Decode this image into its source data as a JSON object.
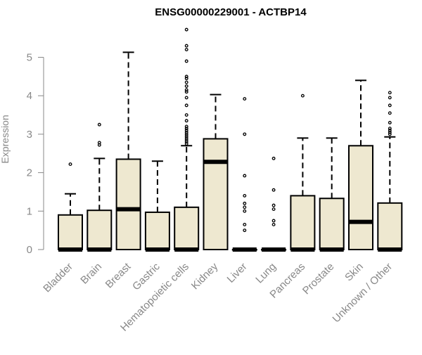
{
  "chart_data": {
    "type": "boxplot",
    "title": "ENSG00000229001 - ACTBP14",
    "ylabel": "Expression",
    "xlabel": "",
    "ylim": [
      0,
      5.75
    ],
    "yticks": [
      0,
      1,
      2,
      3,
      4,
      5
    ],
    "grid": false,
    "colors": {
      "box_fill": "#EEE8D0",
      "stroke": "#000000",
      "axis": "#888888"
    },
    "categories": [
      "Bladder",
      "Brain",
      "Breast",
      "Gastric",
      "Hematopoietic cells",
      "Kidney",
      "Liver",
      "Lung",
      "Pancreas",
      "Prostate",
      "Skin",
      "Unknown / Other"
    ],
    "boxes": [
      {
        "q1": 0,
        "median": 0,
        "q3": 0.9,
        "whisker_low": 0,
        "whisker_high": 1.45,
        "outliers": [
          2.22
        ]
      },
      {
        "q1": 0,
        "median": 0,
        "q3": 1.02,
        "whisker_low": 0,
        "whisker_high": 2.37,
        "outliers": [
          2.72,
          2.78,
          3.25
        ]
      },
      {
        "q1": 0,
        "median": 1.05,
        "q3": 2.35,
        "whisker_low": 0,
        "whisker_high": 5.13,
        "outliers": []
      },
      {
        "q1": 0,
        "median": 0,
        "q3": 0.97,
        "whisker_low": 0,
        "whisker_high": 2.3,
        "outliers": []
      },
      {
        "q1": 0,
        "median": 0,
        "q3": 1.1,
        "whisker_low": 0,
        "whisker_high": 2.7,
        "outliers": [
          2.75,
          2.8,
          2.85,
          2.9,
          2.95,
          3.0,
          3.05,
          3.1,
          3.15,
          3.2,
          3.35,
          3.5,
          3.75,
          3.95,
          4.1,
          4.15,
          4.25,
          4.35,
          4.45,
          4.5,
          4.9,
          5.2,
          5.3,
          5.72
        ]
      },
      {
        "q1": 0,
        "median": 2.28,
        "q3": 2.88,
        "whisker_low": 0,
        "whisker_high": 4.03,
        "outliers": []
      },
      {
        "q1": 0,
        "median": 0,
        "q3": 0,
        "whisker_low": 0,
        "whisker_high": 0,
        "outliers": [
          0.5,
          0.65,
          1.0,
          1.1,
          1.2,
          1.4,
          1.92,
          3.0,
          3.92
        ]
      },
      {
        "q1": 0,
        "median": 0,
        "q3": 0,
        "whisker_low": 0,
        "whisker_high": 0,
        "outliers": [
          0.65,
          0.75,
          1.05,
          1.15,
          1.55,
          2.37
        ]
      },
      {
        "q1": 0,
        "median": 0,
        "q3": 1.4,
        "whisker_low": 0,
        "whisker_high": 2.9,
        "outliers": [
          4.0
        ]
      },
      {
        "q1": 0,
        "median": 0,
        "q3": 1.33,
        "whisker_low": 0,
        "whisker_high": 2.9,
        "outliers": []
      },
      {
        "q1": 0,
        "median": 0.72,
        "q3": 2.7,
        "whisker_low": 0,
        "whisker_high": 4.4,
        "outliers": []
      },
      {
        "q1": 0,
        "median": 0,
        "q3": 1.21,
        "whisker_low": 0,
        "whisker_high": 2.93,
        "outliers": [
          3.0,
          3.05,
          3.1,
          3.15,
          3.3,
          3.55,
          3.75,
          3.95,
          4.08
        ]
      }
    ]
  }
}
